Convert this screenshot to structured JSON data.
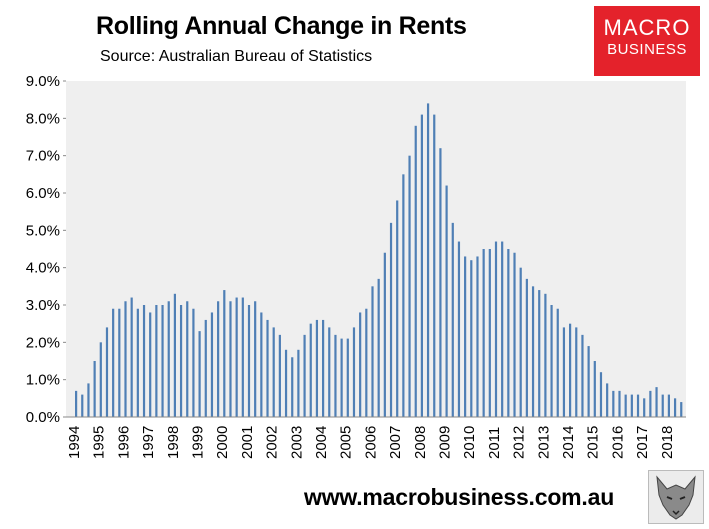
{
  "header": {
    "title": "Rolling Annual Change in Rents",
    "subtitle": "Source: Australian Bureau of Statistics"
  },
  "logo": {
    "line1": "MACRO",
    "line2": "BUSINESS"
  },
  "footer": {
    "url": "www.macrobusiness.com.au"
  },
  "colors": {
    "bar": "#4f7fb5",
    "plot_bg": "#efefef",
    "logo_bg": "#e4222b"
  },
  "chart_data": {
    "type": "bar",
    "title": "Rolling Annual Change in Rents",
    "subtitle": "Source: Australian Bureau of Statistics",
    "ylim": [
      0,
      9
    ],
    "y_ticks": [
      "0.0%",
      "1.0%",
      "2.0%",
      "3.0%",
      "4.0%",
      "5.0%",
      "6.0%",
      "7.0%",
      "8.0%",
      "9.0%"
    ],
    "x_tick_labels": [
      "1994",
      "1995",
      "1996",
      "1997",
      "1998",
      "1999",
      "2000",
      "2001",
      "2002",
      "2003",
      "2004",
      "2005",
      "2006",
      "2007",
      "2008",
      "2009",
      "2010",
      "2011",
      "2012",
      "2013",
      "2014",
      "2015",
      "2016",
      "2017",
      "2018"
    ],
    "start_year": 1994,
    "periods_per_year": 4,
    "values": [
      0.7,
      0.6,
      0.9,
      1.5,
      2.0,
      2.4,
      2.9,
      2.9,
      3.1,
      3.2,
      2.9,
      3.0,
      2.8,
      3.0,
      3.0,
      3.1,
      3.3,
      3.0,
      3.1,
      2.9,
      2.3,
      2.6,
      2.8,
      3.1,
      3.4,
      3.1,
      3.2,
      3.2,
      3.0,
      3.1,
      2.8,
      2.6,
      2.4,
      2.2,
      1.8,
      1.6,
      1.8,
      2.2,
      2.5,
      2.6,
      2.6,
      2.4,
      2.2,
      2.1,
      2.1,
      2.4,
      2.8,
      2.9,
      3.5,
      3.7,
      4.4,
      5.2,
      5.8,
      6.5,
      7.0,
      7.8,
      8.1,
      8.4,
      8.1,
      7.2,
      6.2,
      5.2,
      4.7,
      4.3,
      4.2,
      4.3,
      4.5,
      4.5,
      4.7,
      4.7,
      4.5,
      4.4,
      4.0,
      3.7,
      3.5,
      3.4,
      3.3,
      3.0,
      2.9,
      2.4,
      2.5,
      2.4,
      2.2,
      1.9,
      1.5,
      1.2,
      0.9,
      0.7,
      0.7,
      0.6,
      0.6,
      0.6,
      0.5,
      0.7,
      0.8,
      0.6,
      0.6,
      0.5,
      0.4
    ],
    "grid": false,
    "legend": "none"
  }
}
